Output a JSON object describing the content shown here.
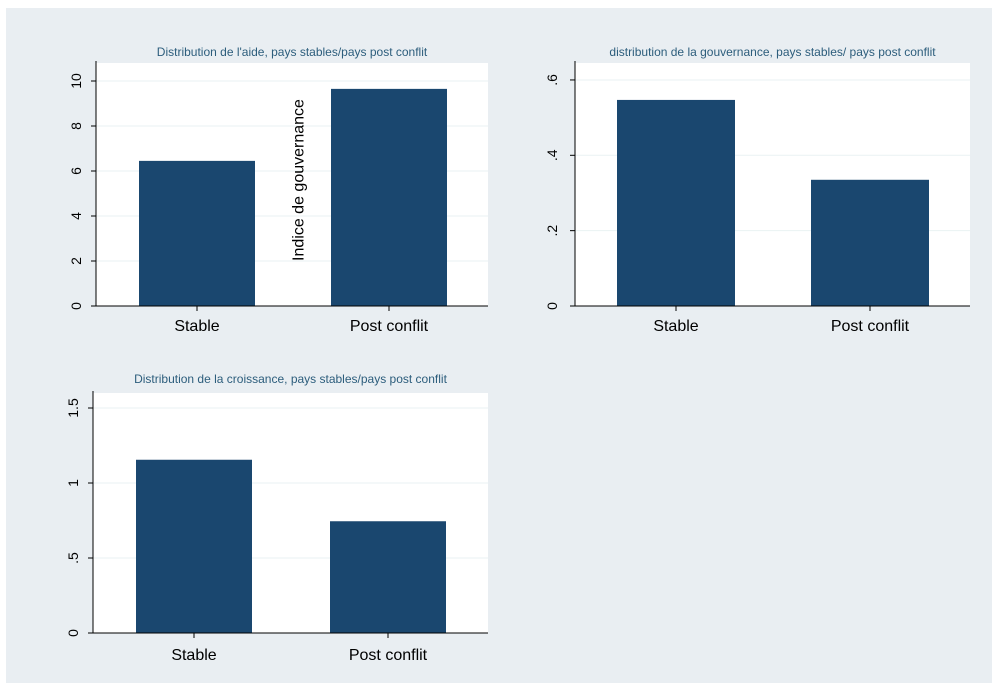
{
  "chart_data": [
    {
      "type": "bar",
      "title": "Distribution de l'aide, pays stables/pays post conflit",
      "categories": [
        "Stable",
        "Post conflit"
      ],
      "values": [
        6.45,
        9.65
      ],
      "ytick_labels": [
        "0",
        "2",
        "4",
        "6",
        "8",
        "10"
      ],
      "ytick_values": [
        0,
        2,
        4,
        6,
        8,
        10
      ],
      "ylim": [
        0,
        10.8
      ],
      "annotation": "Indice de gouvernance",
      "grid": true,
      "bar_color": "#1a476f"
    },
    {
      "type": "bar",
      "title": "distribution de la gouvernance, pays stables/ pays post conflit",
      "categories": [
        "Stable",
        "Post conflit"
      ],
      "values": [
        0.547,
        0.335
      ],
      "ytick_labels": [
        "0",
        ".2",
        ".4",
        ".6"
      ],
      "ytick_values": [
        0,
        0.2,
        0.4,
        0.6
      ],
      "ylim": [
        0,
        0.645
      ],
      "grid": true,
      "bar_color": "#1a476f"
    },
    {
      "type": "bar",
      "title": "Distribution de la croissance, pays stables/pays post conflit",
      "categories": [
        "Stable",
        "Post conflit"
      ],
      "values": [
        1.155,
        0.745
      ],
      "ytick_labels": [
        "0",
        ".5",
        "1",
        "1.5"
      ],
      "ytick_values": [
        0,
        0.5,
        1,
        1.5
      ],
      "ylim": [
        0,
        1.6
      ],
      "grid": true,
      "bar_color": "#1a476f"
    }
  ],
  "colors": {
    "background": "#e9eef2",
    "plot_background": "#ffffff",
    "bar": "#1a476f",
    "title": "#2c5d7c",
    "grid": "#eaf2f3"
  }
}
